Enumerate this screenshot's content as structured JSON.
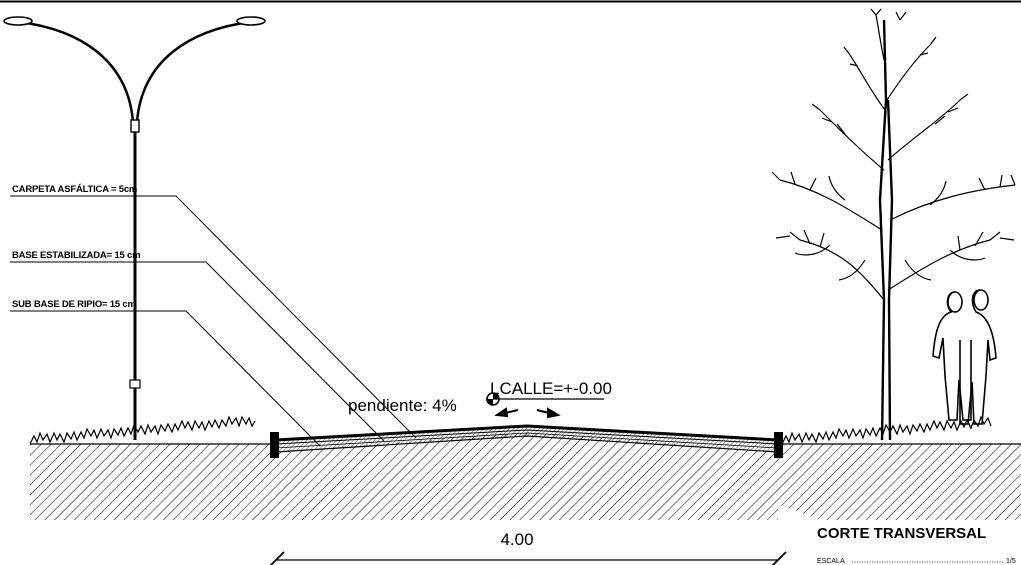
{
  "layers": [
    {
      "key": "carpeta",
      "label": "CARPETA ASFÁLTICA = 5cm"
    },
    {
      "key": "base",
      "label": "BASE ESTABILIZADA= 15 cm"
    },
    {
      "key": "subbase",
      "label": "SUB BASE DE RIPIO= 15 cm"
    }
  ],
  "slope_label": "pendiente: 4%",
  "level_label": "LCALLE=+-0.00",
  "dimension_label": "4.00",
  "title": "CORTE TRANSVERSAL",
  "scale_label": "ESCALA",
  "scale_value": "1/5",
  "colors": {
    "ink": "#000000",
    "paper": "#ffffff"
  },
  "icons": [
    "street-lamp-icon",
    "tree-icon",
    "people-silhouette-icon",
    "grass-icon"
  ]
}
